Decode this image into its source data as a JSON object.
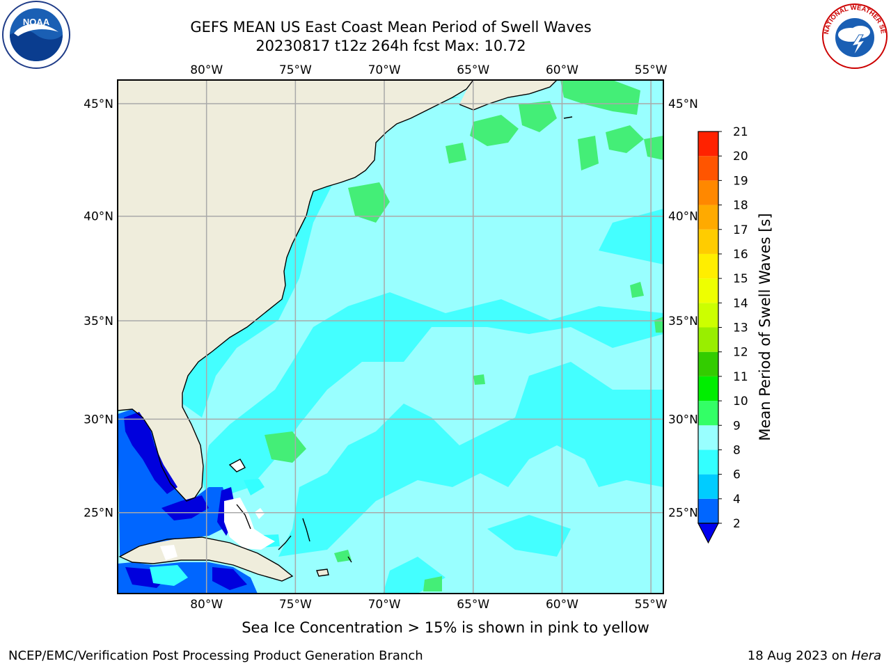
{
  "title": {
    "line1": "GEFS MEAN US East Coast Mean Period of Swell Waves",
    "line2": "20230817 t12z 264h fcst   Max: 10.72"
  },
  "axes": {
    "lon_labels": [
      "80°W",
      "75°W",
      "70°W",
      "65°W",
      "60°W",
      "55°W"
    ],
    "lat_labels": [
      "45°N",
      "40°N",
      "35°N",
      "30°N",
      "25°N"
    ],
    "lon_values": [
      -80,
      -75,
      -70,
      -65,
      -60,
      -55
    ],
    "lat_values": [
      45,
      40,
      35,
      30,
      25
    ],
    "lon_range": [
      -85,
      -54.3
    ],
    "lat_range": [
      20.5,
      46
    ]
  },
  "colorbar": {
    "label": "Mean Period of Swell Waves [s]",
    "levels": [
      2,
      4,
      6,
      8,
      9,
      10,
      11,
      12,
      13,
      14,
      15,
      16,
      17,
      18,
      19,
      20,
      21
    ],
    "tick_labels": [
      "2",
      "4",
      "6",
      "8",
      "9",
      "10",
      "11",
      "12",
      "13",
      "14",
      "15",
      "16",
      "17",
      "18",
      "19",
      "20",
      "21"
    ],
    "colors": [
      "#0066ff",
      "#00ccff",
      "#33ffff",
      "#99ffff",
      "#33ff66",
      "#00ee00",
      "#33cc00",
      "#99ee00",
      "#ccff00",
      "#eeff00",
      "#ffee00",
      "#ffcc00",
      "#ffaa00",
      "#ff8800",
      "#ff5500",
      "#ff2200"
    ],
    "under_color": "#0000ee"
  },
  "map_colors": {
    "land": "#efeddc",
    "ocean_base": "#99ffff",
    "band_6_8": "#44ffff",
    "band_9_10": "#44ee77",
    "band_2_4": "#0066ff",
    "band_under": "#0000dd",
    "no_data": "#ffffff",
    "grid": "#a9a9a9"
  },
  "footer": {
    "sea_ice_note": "Sea Ice Concentration > 15% is shown in pink to yellow",
    "credit": "NCEP/EMC/Verification Post Processing Product Generation Branch",
    "date": "18 Aug 2023 on ",
    "host": "Hera"
  },
  "logos": {
    "left": "NOAA",
    "right": "NATIONAL WEATHER SERVICE"
  }
}
